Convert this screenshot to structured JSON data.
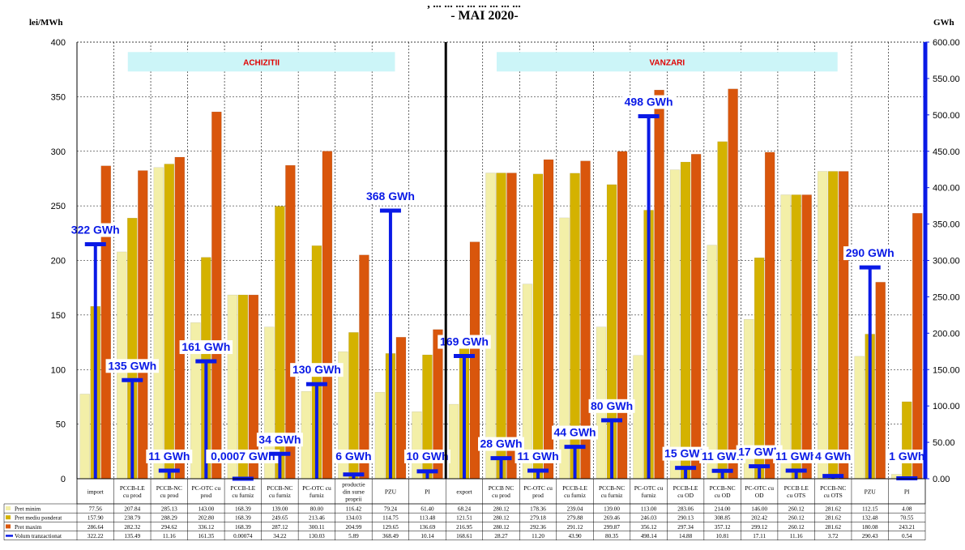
{
  "header": {
    "title_fragment": ", ... ... ... ... ... ... ... ...",
    "period": "- MAI 2020-",
    "left_unit": "lei/MWh",
    "right_unit": "GWh"
  },
  "chart_data": {
    "type": "bar",
    "colors": {
      "pret_minim": "#F3EFA8",
      "pret_mediu": "#D4B200",
      "pret_maxim": "#D9560C",
      "volum": "#0A1AE6",
      "banner_bg": "#CCF5F8",
      "banner_text": "#E00000",
      "grid": "#000000"
    },
    "left_axis": {
      "min": 0,
      "max": 400,
      "ticks": [
        "0",
        "50",
        "100",
        "150",
        "200",
        "250",
        "300",
        "350",
        "400"
      ]
    },
    "right_axis": {
      "min": 0,
      "max": 600,
      "ticks": [
        "0.00",
        "50.00",
        "100.00",
        "150.00",
        "200.00",
        "250.00",
        "300.00",
        "350.00",
        "400.00",
        "450.00",
        "500.00",
        "550.00",
        "600.00"
      ]
    },
    "sections": [
      {
        "label": "ACHIZITII",
        "from": 0,
        "to": 9
      },
      {
        "label": "VANZARI",
        "from": 10,
        "to": 21
      }
    ],
    "categories": [
      "import",
      "PCCB-LE cu prod",
      "PCCB-NC cu prod",
      "PC-OTC cu prod",
      "PCCB-LE cu furniz",
      "PCCB-NC cu furniz",
      "PC-OTC cu furniz",
      "productie din surse proprii",
      "PZU",
      "PI",
      "export",
      "PCCB NC cu prod",
      "PC-OTC cu prod",
      "PCCB-LE cu furniz",
      "PCCB-NC cu furniz",
      "PC-OTC cu furniz",
      "PCCB-LE cu OD",
      "PCCB-NC cu OD",
      "PC-OTC cu OD",
      "PCCB LE cu OTS",
      "PCCB-NC cu OTS",
      "PZU",
      "PI"
    ],
    "series": [
      {
        "name": "Pret minim",
        "values": [
          77.56,
          207.84,
          285.13,
          143.0,
          168.39,
          139.0,
          80.0,
          116.42,
          79.24,
          61.4,
          68.24,
          280.12,
          178.36,
          239.04,
          139.0,
          113.0,
          283.06,
          214.0,
          146.0,
          260.12,
          281.62,
          112.15,
          4.08
        ],
        "labels": [
          "77.56",
          "207.84",
          "285.13",
          "143.00",
          "168.39",
          "139.00",
          "80.00",
          "116.42",
          "79.24",
          "61.40",
          "68.24",
          "280.12",
          "178.36",
          "239.04",
          "139.00",
          "113.00",
          "283.06",
          "214.00",
          "146.00",
          "260.12",
          "281.62",
          "112.15",
          "4.08"
        ]
      },
      {
        "name": "Pret mediu ponderat",
        "values": [
          157.9,
          238.79,
          288.29,
          202.8,
          168.39,
          249.65,
          213.46,
          134.03,
          114.75,
          113.48,
          121.51,
          280.12,
          279.18,
          279.88,
          269.46,
          246.03,
          290.13,
          308.85,
          202.42,
          260.12,
          281.62,
          132.48,
          70.55
        ],
        "labels": [
          "157.90",
          "238.79",
          "288.29",
          "202.80",
          "168.39",
          "249.65",
          "213.46",
          "134.03",
          "114.75",
          "113.48",
          "121.51",
          "280.12",
          "279.18",
          "279.88",
          "269.46",
          "246.03",
          "290.13",
          "308.85",
          "202.42",
          "260.12",
          "281.62",
          "132.48",
          "70.55"
        ]
      },
      {
        "name": "Pret maxim",
        "values": [
          286.64,
          282.32,
          294.62,
          336.12,
          168.39,
          287.12,
          300.11,
          204.99,
          129.65,
          136.69,
          216.95,
          280.12,
          292.36,
          291.12,
          299.87,
          356.12,
          297.34,
          357.12,
          299.12,
          260.12,
          281.62,
          180.08,
          243.21
        ],
        "labels": [
          "286.64",
          "282.32",
          "294.62",
          "336.12",
          "168.39",
          "287.12",
          "300.11",
          "204.99",
          "129.65",
          "136.69",
          "216.95",
          "280.12",
          "292.36",
          "291.12",
          "299.87",
          "356.12",
          "297.34",
          "357.12",
          "299.12",
          "260.12",
          "281.62",
          "180.08",
          "243.21"
        ]
      },
      {
        "name": "Volum tranzactionat",
        "values": [
          322.22,
          135.49,
          11.16,
          161.35,
          0.00074,
          34.22,
          130.03,
          5.89,
          368.49,
          10.14,
          168.61,
          28.27,
          11.2,
          43.9,
          80.35,
          498.14,
          14.88,
          10.81,
          17.11,
          11.16,
          3.72,
          290.43,
          0.54
        ],
        "labels": [
          "322.22",
          "135.49",
          "11.16",
          "161.35",
          "0.00074",
          "34.22",
          "130.03",
          "5.89",
          "368.49",
          "10.14",
          "168.61",
          "28.27",
          "11.20",
          "43.90",
          "80.35",
          "498.14",
          "14.88",
          "10.81",
          "17.11",
          "11.16",
          "3.72",
          "290.43",
          "0.54"
        ],
        "annotations": [
          "322 GWh",
          "135 GWh",
          "11 GWh",
          "161 GWh",
          "0,0007 GWh",
          "34 GWh",
          "130 GWh",
          "6 GWh",
          "368 GWh",
          "10 GWh",
          "169 GWh",
          "28 GWh",
          "11 GWh",
          "44 GWh",
          "80 GWh",
          "498 GWh",
          "15 GWh",
          "11 GWh",
          "17 GWh",
          "11 GWh",
          "4 GWh",
          "290 GWh",
          "1 GWh"
        ]
      }
    ]
  }
}
